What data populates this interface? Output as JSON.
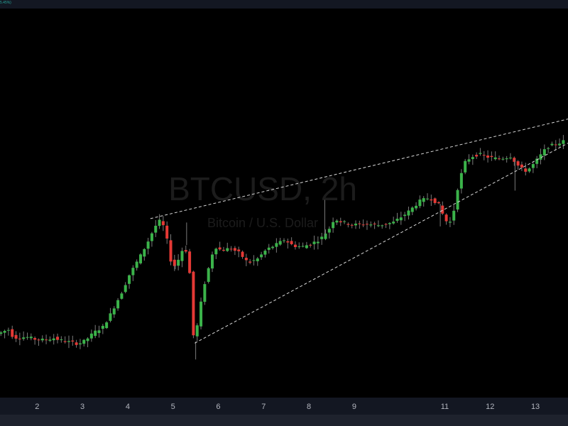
{
  "colors": {
    "background": "#000000",
    "up": "#26a69a",
    "up_body": "#3bb34a",
    "down": "#e53935",
    "wick": "#7a7a7a",
    "trendline": "#d9d9d9",
    "watermark": "#1c1c1c",
    "axis_text": "#b2b5be"
  },
  "header": {
    "change_label": "5.45%)"
  },
  "watermark": {
    "symbol": "BTCUSD, 2h",
    "description": "Bitcoin / U.S. Dollar"
  },
  "chart_data": {
    "type": "candlestick",
    "title": "",
    "xlabel": "",
    "ylabel": "",
    "x_ticks": [
      {
        "value": 2,
        "label": "2"
      },
      {
        "value": 3,
        "label": "3"
      },
      {
        "value": 4,
        "label": "4"
      },
      {
        "value": 5,
        "label": "5"
      },
      {
        "value": 6,
        "label": "6"
      },
      {
        "value": 7,
        "label": "7"
      },
      {
        "value": 8,
        "label": "8"
      },
      {
        "value": 9,
        "label": "9"
      },
      {
        "value": 11,
        "label": "11"
      },
      {
        "value": 12,
        "label": "12"
      },
      {
        "value": 13,
        "label": "13"
      }
    ],
    "x_range": [
      1.18,
      13.72
    ],
    "y_range": [
      0,
      100
    ],
    "grid": false,
    "anchors": [
      [
        1.18,
        16.4
      ],
      [
        1.3,
        17.0
      ],
      [
        1.4,
        17.6
      ],
      [
        1.5,
        15.8
      ],
      [
        1.6,
        15.3
      ],
      [
        1.8,
        15.6
      ],
      [
        2.0,
        15.0
      ],
      [
        2.2,
        14.8
      ],
      [
        2.4,
        15.3
      ],
      [
        2.6,
        14.6
      ],
      [
        2.8,
        14.2
      ],
      [
        2.95,
        13.8
      ],
      [
        3.1,
        14.6
      ],
      [
        3.3,
        16.8
      ],
      [
        3.5,
        18.2
      ],
      [
        3.65,
        21.2
      ],
      [
        3.8,
        24.6
      ],
      [
        3.95,
        28.0
      ],
      [
        4.05,
        31.0
      ],
      [
        4.2,
        34.0
      ],
      [
        4.35,
        37.0
      ],
      [
        4.5,
        40.4
      ],
      [
        4.62,
        43.4
      ],
      [
        4.72,
        45.4
      ],
      [
        4.8,
        45.2
      ],
      [
        4.9,
        41.0
      ],
      [
        5.0,
        34.8
      ],
      [
        5.1,
        33.6
      ],
      [
        5.2,
        36.8
      ],
      [
        5.3,
        39.2
      ],
      [
        5.4,
        33.6
      ],
      [
        5.5,
        14.4
      ],
      [
        5.6,
        19.8
      ],
      [
        5.7,
        27.6
      ],
      [
        5.8,
        32.0
      ],
      [
        5.9,
        36.8
      ],
      [
        6.0,
        38.8
      ],
      [
        6.1,
        37.8
      ],
      [
        6.3,
        38.4
      ],
      [
        6.5,
        37.2
      ],
      [
        6.7,
        34.6
      ],
      [
        6.9,
        35.6
      ],
      [
        7.1,
        38.0
      ],
      [
        7.3,
        39.2
      ],
      [
        7.5,
        40.6
      ],
      [
        7.7,
        39.0
      ],
      [
        7.9,
        38.8
      ],
      [
        8.1,
        39.6
      ],
      [
        8.3,
        40.8
      ],
      [
        8.5,
        43.6
      ],
      [
        8.6,
        46.0
      ],
      [
        8.75,
        45.2
      ],
      [
        9.0,
        44.4
      ],
      [
        9.3,
        44.6
      ],
      [
        9.6,
        44.3
      ],
      [
        9.9,
        45.0
      ],
      [
        10.2,
        47.4
      ],
      [
        10.5,
        50.6
      ],
      [
        10.7,
        51.4
      ],
      [
        10.9,
        49.8
      ],
      [
        11.0,
        47.0
      ],
      [
        11.1,
        44.8
      ],
      [
        11.2,
        45.4
      ],
      [
        11.35,
        55.4
      ],
      [
        11.5,
        60.8
      ],
      [
        11.65,
        62.0
      ],
      [
        11.8,
        62.6
      ],
      [
        12.0,
        61.8
      ],
      [
        12.2,
        61.4
      ],
      [
        12.35,
        61.6
      ],
      [
        12.5,
        62.0
      ],
      [
        12.7,
        59.0
      ],
      [
        12.85,
        58.2
      ],
      [
        13.0,
        60.0
      ],
      [
        13.15,
        62.2
      ],
      [
        13.3,
        64.4
      ],
      [
        13.45,
        65.0
      ],
      [
        13.6,
        65.6
      ],
      [
        13.72,
        66.2
      ]
    ],
    "trendlines": [
      {
        "name": "upper",
        "from": [
          4.5,
          46.0
        ],
        "to": [
          13.72,
          71.6
        ]
      },
      {
        "name": "lower",
        "from": [
          5.48,
          14.0
        ],
        "to": [
          13.72,
          65.4
        ]
      }
    ]
  }
}
